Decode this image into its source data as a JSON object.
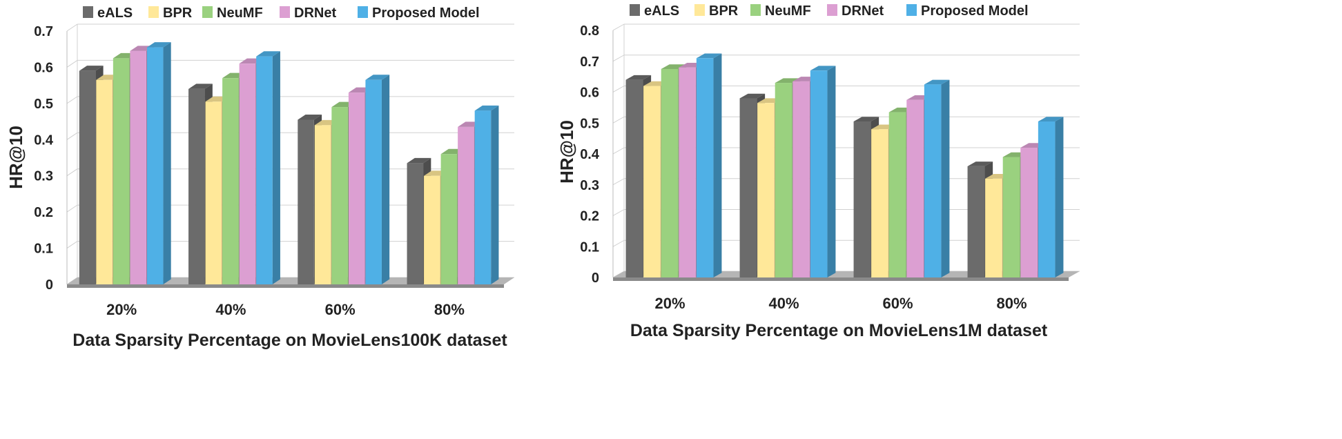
{
  "legend": [
    "eALS",
    "BPR",
    "NeuMF",
    "DRNet",
    "Proposed Model"
  ],
  "colors": {
    "eALS": "#6b6b6b",
    "BPR": "#ffe899",
    "NeuMF": "#9ad17f",
    "DRNet": "#dc9fd2",
    "Proposed Model": "#4fb0e6"
  },
  "chart_data": [
    {
      "type": "bar",
      "ylabel": "HR@10",
      "xlabel": "Data Sparsity Percentage on MovieLens100K dataset",
      "categories": [
        "20%",
        "40%",
        "60%",
        "80%"
      ],
      "yticks": [
        "0",
        "0.1",
        "0.2",
        "0.3",
        "0.4",
        "0.5",
        "0.6",
        "0.7"
      ],
      "ylim": [
        0,
        0.7
      ],
      "grid": true,
      "legend_position": "top",
      "series": [
        {
          "name": "eALS",
          "values": [
            0.59,
            0.54,
            0.455,
            0.335
          ]
        },
        {
          "name": "BPR",
          "values": [
            0.565,
            0.505,
            0.44,
            0.3
          ]
        },
        {
          "name": "NeuMF",
          "values": [
            0.625,
            0.57,
            0.49,
            0.36
          ]
        },
        {
          "name": "DRNet",
          "values": [
            0.645,
            0.61,
            0.53,
            0.435
          ]
        },
        {
          "name": "Proposed Model",
          "values": [
            0.655,
            0.63,
            0.565,
            0.48
          ]
        }
      ]
    },
    {
      "type": "bar",
      "ylabel": "HR@10",
      "xlabel": "Data Sparsity Percentage on MovieLens1M dataset",
      "categories": [
        "20%",
        "40%",
        "60%",
        "80%"
      ],
      "yticks": [
        "0",
        "0.1",
        "0.2",
        "0.3",
        "0.4",
        "0.5",
        "0.6",
        "0.7",
        "0.8"
      ],
      "ylim": [
        0,
        0.8
      ],
      "grid": true,
      "legend_position": "top",
      "series": [
        {
          "name": "eALS",
          "values": [
            0.64,
            0.58,
            0.505,
            0.36
          ]
        },
        {
          "name": "BPR",
          "values": [
            0.62,
            0.565,
            0.48,
            0.32
          ]
        },
        {
          "name": "NeuMF",
          "values": [
            0.675,
            0.63,
            0.535,
            0.39
          ]
        },
        {
          "name": "DRNet",
          "values": [
            0.68,
            0.635,
            0.575,
            0.42
          ]
        },
        {
          "name": "Proposed Model",
          "values": [
            0.71,
            0.67,
            0.625,
            0.505
          ]
        }
      ]
    }
  ]
}
